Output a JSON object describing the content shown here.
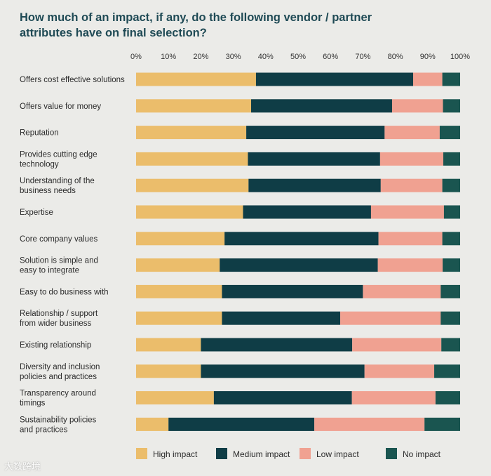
{
  "chart_data": {
    "type": "bar",
    "orientation": "horizontal",
    "stacked": true,
    "title": "How much of an impact, if any, do the following vendor / partner attributes have on final selection?",
    "xlim": [
      0,
      100
    ],
    "x_ticks": [
      "0%",
      "10%",
      "20%",
      "30%",
      "40%",
      "50%",
      "60%",
      "70%",
      "80%",
      "90%",
      "100%"
    ],
    "categories": [
      [
        "Offers cost effective solutions"
      ],
      [
        "Offers value for money"
      ],
      [
        "Reputation"
      ],
      [
        "Provides cutting edge",
        "technology"
      ],
      [
        "Understanding of the",
        "business needs"
      ],
      [
        "Expertise"
      ],
      [
        "Core company values"
      ],
      [
        "Solution is simple and",
        "easy to integrate"
      ],
      [
        "Easy to do business with"
      ],
      [
        "Relationship / support",
        "from wider business"
      ],
      [
        "Existing relationship"
      ],
      [
        "Diversity and inclusion",
        "policies and practices"
      ],
      [
        "Transparency around",
        "timings"
      ],
      [
        "Sustainability policies",
        "and practices"
      ]
    ],
    "series": [
      {
        "name": "High impact",
        "color": "#ebbd6b",
        "values": [
          37,
          35.5,
          34,
          34.5,
          34.7,
          33,
          27.3,
          25.8,
          26.5,
          26.5,
          20,
          20,
          24,
          10
        ]
      },
      {
        "name": "Medium impact",
        "color": "#0f3d46",
        "values": [
          48.5,
          43.5,
          42.7,
          40.8,
          40.8,
          39.5,
          47.5,
          48.8,
          43.5,
          36.5,
          46.7,
          50.5,
          42.6,
          45
        ]
      },
      {
        "name": "Low impact",
        "color": "#f0a191",
        "values": [
          9,
          15.7,
          17,
          19.5,
          19,
          22.5,
          19.7,
          20,
          24,
          31,
          27.5,
          21.5,
          25.8,
          34
        ]
      },
      {
        "name": "No impact",
        "color": "#1a5550",
        "values": [
          5.5,
          5.3,
          6.3,
          5.2,
          5.5,
          5,
          5.5,
          5.4,
          6,
          6,
          5.8,
          8,
          7.6,
          11
        ]
      }
    ],
    "legend": "bottom",
    "grid": false
  },
  "watermark": "大数跨境"
}
